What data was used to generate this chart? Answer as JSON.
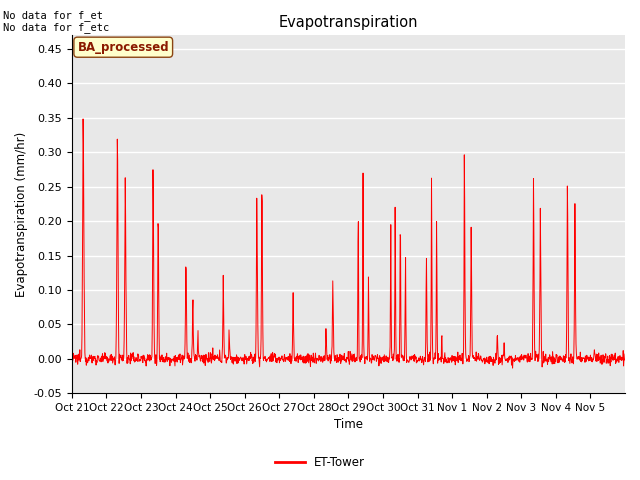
{
  "title": "Evapotranspiration",
  "ylabel": "Evapotranspiration (mm/hr)",
  "xlabel": "Time",
  "ylim": [
    -0.05,
    0.47
  ],
  "annotation_text": "No data for f_et\nNo data for f_etc",
  "box_label": "BA_processed",
  "legend_label": "ET-Tower",
  "line_color": "red",
  "bg_color": "#e8e8e8",
  "xtick_labels": [
    "Oct 21",
    "Oct 22",
    "Oct 23",
    "Oct 24",
    "Oct 25",
    "Oct 26",
    "Oct 27",
    "Oct 28",
    "Oct 29",
    "Oct 30",
    "Oct 31",
    "Nov 1",
    "Nov 2",
    "Nov 3",
    "Nov 4",
    "Nov 5"
  ],
  "ytick_values": [
    -0.05,
    0.0,
    0.05,
    0.1,
    0.15,
    0.2,
    0.25,
    0.3,
    0.35,
    0.4,
    0.45
  ],
  "night_val": -0.01,
  "noise_std": 0.004,
  "points_per_day": 96,
  "n_days": 16
}
